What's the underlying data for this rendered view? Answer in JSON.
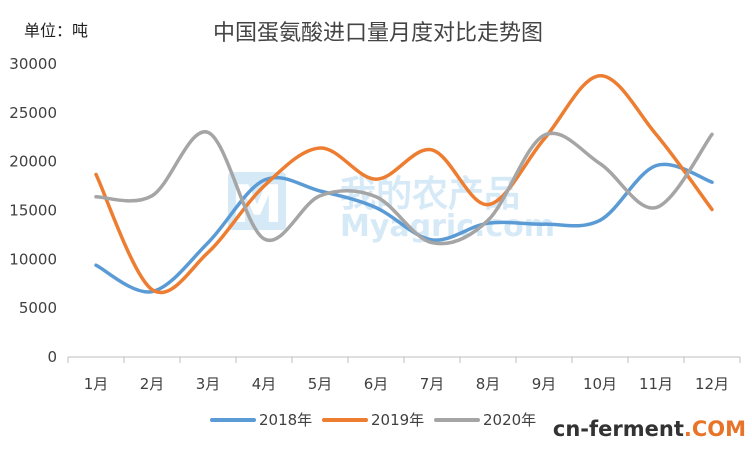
{
  "unit_label": "单位：吨",
  "watermark": {
    "logo_letter": "M",
    "cn_text": "我的农产品",
    "en_text": "Myagric.com"
  },
  "source_logo": {
    "text": "cn-ferment",
    "suffix": ".COM"
  },
  "colors": {
    "2018年": "#5b9bd5",
    "2019年": "#ed7d31",
    "2020年": "#a5a5a5",
    "axis": "#bfbfbf",
    "text": "#404040",
    "watermark": "#d6e9f7",
    "logo_accent": "#e8742a"
  },
  "chart_data": {
    "type": "line",
    "title": "中国蛋氨酸进口量月度对比走势图",
    "xlabel": "",
    "ylabel": "",
    "categories": [
      "1月",
      "2月",
      "3月",
      "4月",
      "5月",
      "6月",
      "7月",
      "8月",
      "9月",
      "10月",
      "11月",
      "12月"
    ],
    "ylim": [
      0,
      30000
    ],
    "yticks": [
      0,
      5000,
      10000,
      15000,
      20000,
      25000,
      30000
    ],
    "grid": false,
    "legend": "bottom",
    "smooth": true,
    "series": [
      {
        "name": "2018年",
        "values": [
          9400,
          6700,
          11700,
          18100,
          17000,
          15300,
          12000,
          13700,
          13600,
          14000,
          19600,
          17900
        ]
      },
      {
        "name": "2019年",
        "values": [
          18700,
          6900,
          10700,
          17500,
          21400,
          18200,
          21200,
          15600,
          22300,
          28800,
          22800,
          15100
        ]
      },
      {
        "name": "2020年",
        "values": [
          16400,
          16500,
          23000,
          12100,
          16500,
          16400,
          11700,
          14000,
          22700,
          19800,
          15300,
          22800
        ]
      }
    ]
  }
}
